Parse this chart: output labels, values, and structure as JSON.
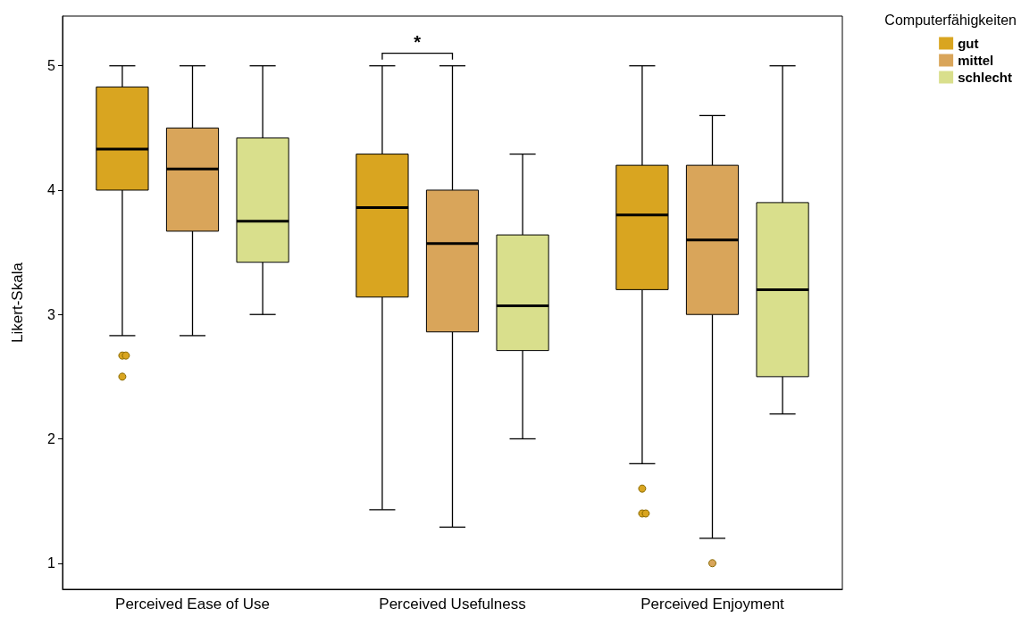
{
  "chart_data": {
    "type": "box",
    "ylabel": "Likert-Skala",
    "legend_title": "Computerfähigkeiten",
    "legend": "top right",
    "categories": [
      "Perceived Ease of Use",
      "Perceived Usefulness",
      "Perceived Enjoyment"
    ],
    "ylim": [
      0.79,
      5.4
    ],
    "yticks": [
      1,
      2,
      3,
      4,
      5
    ],
    "grid": false,
    "annotations": [
      "*"
    ],
    "series": [
      {
        "name": "gut",
        "color": "#d9a520",
        "boxes": [
          {
            "low": 2.83,
            "q1": 4,
            "median": 4.33,
            "q3": 4.83,
            "high": 5,
            "outliers": [
              2.67,
              2.67,
              2.5
            ]
          },
          {
            "low": 1.43,
            "q1": 3.14,
            "median": 3.86,
            "q3": 4.29,
            "high": 5
          },
          {
            "low": 1.8,
            "q1": 3.2,
            "median": 3.8,
            "q3": 4.2,
            "high": 5,
            "outliers": [
              1.6,
              1.4,
              1.4
            ]
          }
        ]
      },
      {
        "name": "mittel",
        "color": "#d9a55a",
        "boxes": [
          {
            "low": 2.83,
            "q1": 3.67,
            "median": 4.17,
            "q3": 4.5,
            "high": 5
          },
          {
            "low": 1.29,
            "q1": 2.86,
            "median": 3.57,
            "q3": 4,
            "high": 5
          },
          {
            "low": 1.2,
            "q1": 3,
            "median": 3.6,
            "q3": 4.2,
            "high": 4.6,
            "outliers": [
              1
            ]
          }
        ]
      },
      {
        "name": "schlecht",
        "color": "#d9df8c",
        "boxes": [
          {
            "low": 3,
            "q1": 3.42,
            "median": 3.75,
            "q3": 4.42,
            "high": 5
          },
          {
            "low": 2,
            "q1": 2.71,
            "median": 3.07,
            "q3": 3.64,
            "high": 4.29
          },
          {
            "low": 2.2,
            "q1": 2.5,
            "median": 3.2,
            "q3": 3.9,
            "high": 5
          }
        ]
      }
    ]
  }
}
